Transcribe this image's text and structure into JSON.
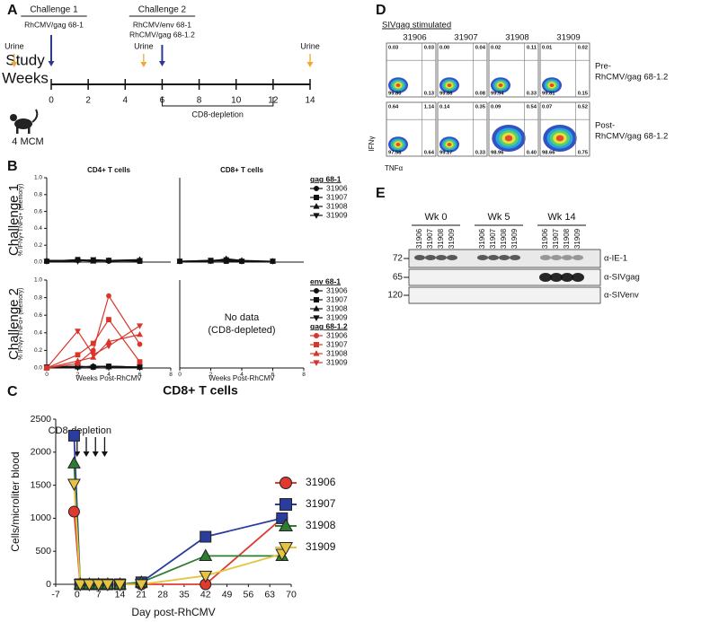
{
  "panel_labels": [
    "A",
    "B",
    "C",
    "D",
    "E"
  ],
  "timeline": {
    "challenge1": {
      "title": "Challenge 1",
      "vectors": [
        "RhCMV/gag 68-1"
      ],
      "week": 0
    },
    "challenge2": {
      "title": "Challenge 2",
      "vectors": [
        "RhCMV/env 68-1",
        "RhCMV/gag 68-1.2"
      ],
      "week": 6
    },
    "urine_label": "Urine",
    "urine_weeks": [
      -2,
      5,
      14
    ],
    "axis_label": [
      "Study",
      "Weeks"
    ],
    "xlim": [
      0,
      14
    ],
    "xticks": [
      0,
      2,
      4,
      6,
      8,
      10,
      12,
      14
    ],
    "depletion": {
      "label": "CD8-depletion",
      "weeks": [
        6,
        12
      ]
    },
    "animals": "4 MCM"
  },
  "chart_data": [
    {
      "type": "line",
      "title": "CD4+ T cells",
      "row_label": "Challenge 1",
      "ylabel": "% IFNγ+TNFα+ (memory)",
      "xlim": [
        0,
        8
      ],
      "ylim": [
        0,
        1
      ],
      "yticks": [
        {
          "value": 0,
          "label": "0.0"
        },
        0.2,
        0.4,
        0.6,
        0.8,
        {
          "value": 1,
          "label": "1.0"
        }
      ],
      "x": [
        0,
        2,
        3,
        4,
        6
      ],
      "series_groups": [
        {
          "title": "gag 68-1",
          "color": "#111111",
          "series": [
            {
              "name": "31906",
              "marker": "circle",
              "values": [
                0.01,
                0.02,
                0.02,
                0.01,
                0.02
              ]
            },
            {
              "name": "31907",
              "marker": "square",
              "values": [
                0.01,
                0.03,
                0.02,
                0.02,
                0.01
              ]
            },
            {
              "name": "31908",
              "marker": "triangle",
              "values": [
                0.02,
                0.02,
                0.01,
                0.02,
                0.03
              ]
            },
            {
              "name": "31909",
              "marker": "triangle-down",
              "values": [
                0.01,
                0.01,
                0.03,
                0.02,
                0.02
              ]
            }
          ]
        }
      ]
    },
    {
      "type": "line",
      "title": "CD8+ T cells",
      "xlim": [
        0,
        8
      ],
      "ylim": [
        0,
        1
      ],
      "x": [
        0,
        2,
        3,
        4,
        6
      ],
      "series_groups": [
        {
          "color": "#111111",
          "series": [
            {
              "marker": "circle",
              "values": [
                0.01,
                0.01,
                0.02,
                0.01,
                0.01
              ]
            },
            {
              "marker": "square",
              "values": [
                0.01,
                0.02,
                0.01,
                0.01,
                0.01
              ]
            },
            {
              "marker": "triangle",
              "values": [
                0.01,
                0.01,
                0.04,
                0.02,
                0.01
              ]
            },
            {
              "marker": "triangle-down",
              "values": [
                0.01,
                0.02,
                0.03,
                0.01,
                0.01
              ]
            }
          ]
        }
      ]
    },
    {
      "type": "line",
      "row_label": "Challenge 2",
      "ylabel": "% IFNγ+TNFα+ (memory)",
      "xlabel": "Weeks Post-RhCMV",
      "xlim": [
        0,
        8
      ],
      "xticks": [
        0,
        2,
        4,
        6,
        8
      ],
      "ylim": [
        0,
        1
      ],
      "yticks": [
        {
          "value": 0,
          "label": "0.0"
        },
        0.2,
        0.4,
        0.6,
        0.8,
        {
          "value": 1,
          "label": "1.0"
        }
      ],
      "x": [
        0,
        2,
        3,
        4,
        6
      ],
      "series_groups": [
        {
          "title": "env 68-1",
          "color": "#111111",
          "series": [
            {
              "name": "31906",
              "marker": "circle",
              "values": [
                0.01,
                0.01,
                0.02,
                0.02,
                0.01
              ]
            },
            {
              "name": "31907",
              "marker": "square",
              "values": [
                0.01,
                0.02,
                0.01,
                0.02,
                0.01
              ]
            },
            {
              "name": "31908",
              "marker": "triangle",
              "values": [
                0.01,
                0.01,
                0.02,
                0.01,
                0.01
              ]
            },
            {
              "name": "31909",
              "marker": "triangle-down",
              "values": [
                0.01,
                0.02,
                0.01,
                0.02,
                0.01
              ]
            }
          ]
        },
        {
          "title": "gag 68-1.2",
          "color": "#d9352b",
          "series": [
            {
              "name": "31906",
              "marker": "circle",
              "values": [
                0,
                0.05,
                0.2,
                0.82,
                0.27
              ]
            },
            {
              "name": "31907",
              "marker": "square",
              "values": [
                0,
                0.15,
                0.28,
                0.55,
                0.07
              ]
            },
            {
              "name": "31908",
              "marker": "triangle",
              "values": [
                0,
                0.08,
                0.12,
                0.3,
                0.38
              ]
            },
            {
              "name": "31909",
              "marker": "triangle-down",
              "values": [
                0,
                0.42,
                0.15,
                0.25,
                0.48
              ]
            }
          ]
        }
      ]
    },
    {
      "type": "line",
      "xlabel": "Weeks Post-RhCMV",
      "xlim": [
        0,
        8
      ],
      "xticks": [
        0,
        2,
        4,
        6,
        8
      ],
      "ylim": [
        0,
        1
      ],
      "annotation": [
        "No data",
        "(CD8-depleted)"
      ]
    },
    {
      "type": "line",
      "title": "CD8+ T cells",
      "xlabel": "Day post-RhCMV",
      "ylabel": "Cells/microliter blood",
      "annotation": [
        "CD8-depletion"
      ],
      "depletion_days": [
        0,
        3,
        6,
        9
      ],
      "xlim": [
        -7,
        70
      ],
      "xticks": [
        -7,
        0,
        7,
        14,
        21,
        28,
        35,
        42,
        49,
        56,
        63,
        70
      ],
      "ylim": [
        0,
        2500
      ],
      "yticks": [
        0,
        500,
        1000,
        1500,
        2000,
        2500
      ],
      "x": [
        -1,
        1,
        4,
        7,
        10,
        14,
        21,
        42,
        67
      ],
      "series": [
        {
          "name": "31906",
          "color": "#e03a2e",
          "marker": "circle",
          "values": [
            1100,
            0,
            0,
            0,
            0,
            0,
            0,
            0,
            1000
          ]
        },
        {
          "name": "31907",
          "color": "#2b3d9c",
          "marker": "square",
          "values": [
            2250,
            0,
            0,
            0,
            0,
            0,
            30,
            720,
            1000
          ]
        },
        {
          "name": "31908",
          "color": "#2e7d32",
          "marker": "triangle",
          "values": [
            1830,
            0,
            0,
            0,
            0,
            0,
            30,
            430,
            430
          ]
        },
        {
          "name": "31909",
          "color": "#e6c440",
          "marker": "triangle-down",
          "values": [
            1520,
            0,
            0,
            0,
            0,
            0,
            0,
            130,
            460
          ]
        }
      ]
    }
  ],
  "flow": {
    "title": "SIVgag stimulated",
    "columns": [
      "31906",
      "31907",
      "31908",
      "31909"
    ],
    "ylabel": "IFNγ",
    "xlabel": "TNFα",
    "rows": [
      {
        "label": [
          "Pre-",
          "RhCMV/gag 68-1.2"
        ],
        "quadrants": [
          [
            "0.03",
            "0.03",
            "99.80",
            "0.13"
          ],
          [
            "0.00",
            "0.04",
            "99.88",
            "0.08"
          ],
          [
            "0.02",
            "0.11",
            "99.54",
            "0.33"
          ],
          [
            "0.01",
            "0.02",
            "99.81",
            "0.15"
          ]
        ]
      },
      {
        "label": [
          "Post-",
          "RhCMV/gag 68-1.2"
        ],
        "quadrants": [
          [
            "0.64",
            "1.14",
            "97.58",
            "0.64"
          ],
          [
            "0.14",
            "0.35",
            "99.17",
            "0.33"
          ],
          [
            "0.09",
            "0.54",
            "98.96",
            "0.40"
          ],
          [
            "0.07",
            "0.52",
            "98.66",
            "0.75"
          ]
        ]
      }
    ]
  },
  "blot": {
    "timepoints": [
      "Wk 0",
      "Wk 5",
      "Wk 14"
    ],
    "lanes": [
      "31906",
      "31907",
      "31908",
      "31909"
    ],
    "rows": [
      {
        "marker": "72",
        "antibody": "α-IE-1"
      },
      {
        "marker": "65",
        "antibody": "α-SIVgag"
      },
      {
        "marker": "120",
        "antibody": "α-SIVenv"
      }
    ]
  }
}
